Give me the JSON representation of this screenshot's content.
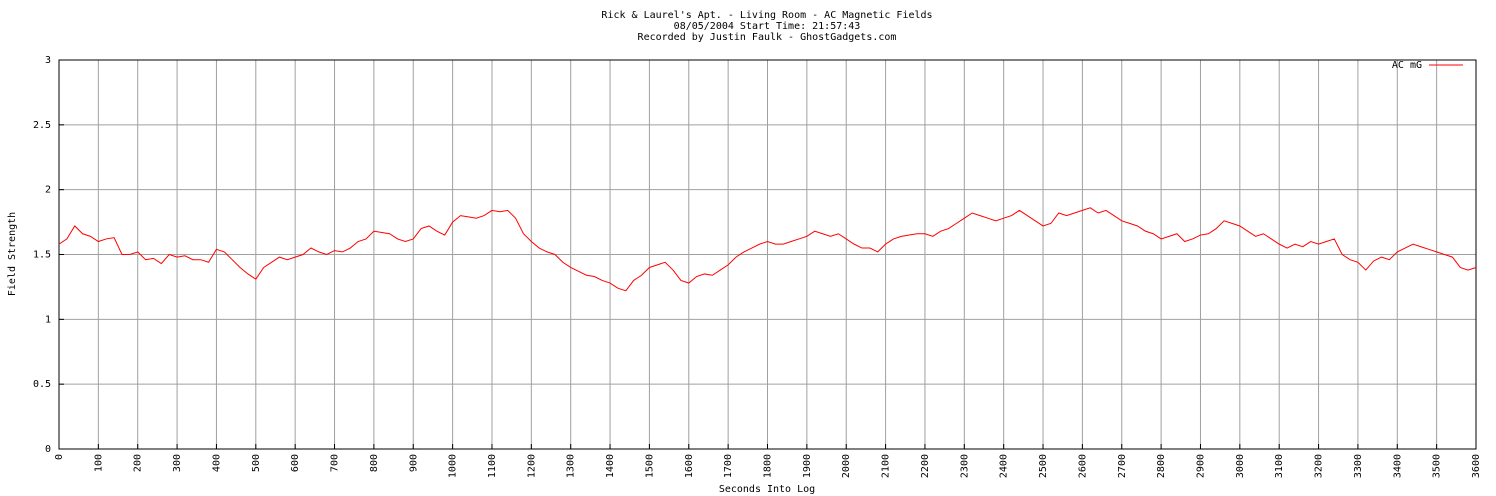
{
  "chart_data": {
    "type": "line",
    "title": "Rick & Laurel's Apt. - Living Room - AC Magnetic Fields",
    "subtitle": "08/05/2004  Start Time: 21:57:43",
    "credit": "Recorded by Justin Faulk - GhostGadgets.com",
    "xlabel": "Seconds Into Log",
    "ylabel": "Field Strength",
    "legend": "top-right",
    "grid": true,
    "xlim": [
      0,
      3600
    ],
    "ylim": [
      0,
      3
    ],
    "xticks": [
      0,
      100,
      200,
      300,
      400,
      500,
      600,
      700,
      800,
      900,
      1000,
      1100,
      1200,
      1300,
      1400,
      1500,
      1600,
      1700,
      1800,
      1900,
      2000,
      2100,
      2200,
      2300,
      2400,
      2500,
      2600,
      2700,
      2800,
      2900,
      3000,
      3100,
      3200,
      3300,
      3400,
      3500,
      3600
    ],
    "yticks": [
      0,
      0.5,
      1,
      1.5,
      2,
      2.5,
      3
    ],
    "x": [
      0,
      20,
      40,
      60,
      80,
      100,
      120,
      140,
      160,
      180,
      200,
      220,
      240,
      260,
      280,
      300,
      320,
      340,
      360,
      380,
      400,
      420,
      440,
      460,
      480,
      500,
      520,
      540,
      560,
      580,
      600,
      620,
      640,
      660,
      680,
      700,
      720,
      740,
      760,
      780,
      800,
      820,
      840,
      860,
      880,
      900,
      920,
      940,
      960,
      980,
      1000,
      1020,
      1040,
      1060,
      1080,
      1100,
      1120,
      1140,
      1160,
      1180,
      1200,
      1220,
      1240,
      1260,
      1280,
      1300,
      1320,
      1340,
      1360,
      1380,
      1400,
      1420,
      1440,
      1460,
      1480,
      1500,
      1520,
      1540,
      1560,
      1580,
      1600,
      1620,
      1640,
      1660,
      1680,
      1700,
      1720,
      1740,
      1760,
      1780,
      1800,
      1820,
      1840,
      1860,
      1880,
      1900,
      1920,
      1940,
      1960,
      1980,
      2000,
      2020,
      2040,
      2060,
      2080,
      2100,
      2120,
      2140,
      2160,
      2180,
      2200,
      2220,
      2240,
      2260,
      2280,
      2300,
      2320,
      2340,
      2360,
      2380,
      2400,
      2420,
      2440,
      2460,
      2480,
      2500,
      2520,
      2540,
      2560,
      2580,
      2600,
      2620,
      2640,
      2660,
      2680,
      2700,
      2720,
      2740,
      2760,
      2780,
      2800,
      2820,
      2840,
      2860,
      2880,
      2900,
      2920,
      2940,
      2960,
      2980,
      3000,
      3020,
      3040,
      3060,
      3080,
      3100,
      3120,
      3140,
      3160,
      3180,
      3200,
      3220,
      3240,
      3260,
      3280,
      3300,
      3320,
      3340,
      3360,
      3380,
      3400,
      3420,
      3440,
      3460,
      3480,
      3500,
      3520,
      3540,
      3560,
      3580,
      3600
    ],
    "series": [
      {
        "name": "AC mG",
        "color": "#ff0000",
        "values": [
          1.58,
          1.62,
          1.72,
          1.66,
          1.64,
          1.6,
          1.62,
          1.63,
          1.5,
          1.5,
          1.52,
          1.46,
          1.47,
          1.43,
          1.5,
          1.48,
          1.49,
          1.46,
          1.46,
          1.44,
          1.54,
          1.52,
          1.46,
          1.4,
          1.35,
          1.31,
          1.4,
          1.44,
          1.48,
          1.46,
          1.48,
          1.5,
          1.55,
          1.52,
          1.5,
          1.53,
          1.52,
          1.55,
          1.6,
          1.62,
          1.68,
          1.67,
          1.66,
          1.62,
          1.6,
          1.62,
          1.7,
          1.72,
          1.68,
          1.65,
          1.75,
          1.8,
          1.79,
          1.78,
          1.8,
          1.84,
          1.83,
          1.84,
          1.78,
          1.66,
          1.6,
          1.55,
          1.52,
          1.5,
          1.44,
          1.4,
          1.37,
          1.34,
          1.33,
          1.3,
          1.28,
          1.24,
          1.22,
          1.3,
          1.34,
          1.4,
          1.42,
          1.44,
          1.38,
          1.3,
          1.28,
          1.33,
          1.35,
          1.34,
          1.38,
          1.42,
          1.48,
          1.52,
          1.55,
          1.58,
          1.6,
          1.58,
          1.58,
          1.6,
          1.62,
          1.64,
          1.68,
          1.66,
          1.64,
          1.66,
          1.62,
          1.58,
          1.55,
          1.55,
          1.52,
          1.58,
          1.62,
          1.64,
          1.65,
          1.66,
          1.66,
          1.64,
          1.68,
          1.7,
          1.74,
          1.78,
          1.82,
          1.8,
          1.78,
          1.76,
          1.78,
          1.8,
          1.84,
          1.8,
          1.76,
          1.72,
          1.74,
          1.82,
          1.8,
          1.82,
          1.84,
          1.86,
          1.82,
          1.84,
          1.8,
          1.76,
          1.74,
          1.72,
          1.68,
          1.66,
          1.62,
          1.64,
          1.66,
          1.6,
          1.62,
          1.65,
          1.66,
          1.7,
          1.76,
          1.74,
          1.72,
          1.68,
          1.64,
          1.66,
          1.62,
          1.58,
          1.55,
          1.58,
          1.56,
          1.6,
          1.58,
          1.6,
          1.62,
          1.5,
          1.46,
          1.44,
          1.38,
          1.45,
          1.48,
          1.46,
          1.52,
          1.55,
          1.58,
          1.56,
          1.54,
          1.52,
          1.5,
          1.48,
          1.4,
          1.38,
          1.4
        ]
      }
    ]
  }
}
